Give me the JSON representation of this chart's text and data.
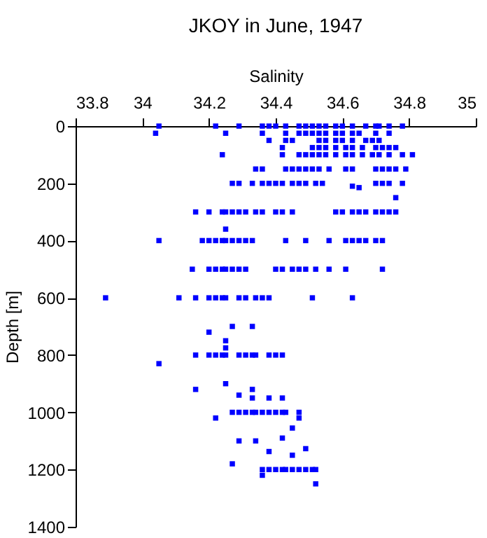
{
  "chart_data": {
    "type": "scatter",
    "title": "JKOY in June, 1947",
    "xlabel": "Salinity",
    "ylabel": "Depth [m]",
    "xlim": [
      33.8,
      35
    ],
    "xticks": [
      33.8,
      34,
      34.2,
      34.4,
      34.6,
      34.8,
      35
    ],
    "ylim": [
      1400,
      0
    ],
    "yticks": [
      0,
      200,
      400,
      600,
      800,
      1000,
      1200,
      1400
    ],
    "marker": "square",
    "series": [
      {
        "color": "#0000ff",
        "x": [
          34.05,
          34.22,
          34.29,
          34.36,
          34.38,
          34.4,
          34.43,
          34.47,
          34.49,
          34.51,
          34.53,
          34.55,
          34.58,
          34.6,
          34.63,
          34.67,
          34.7,
          34.71,
          34.74,
          34.78,
          34.04,
          34.25,
          34.36,
          34.43,
          34.47,
          34.49,
          34.51,
          34.53,
          34.55,
          34.58,
          34.6,
          34.63,
          34.65,
          34.7,
          34.74,
          34.38,
          34.43,
          34.45,
          34.53,
          34.55,
          34.58,
          34.6,
          34.63,
          34.67,
          34.69,
          34.71,
          34.42,
          34.51,
          34.53,
          34.55,
          34.58,
          34.61,
          34.63,
          34.66,
          34.7,
          34.72,
          34.74,
          34.76,
          34.24,
          34.42,
          34.47,
          34.49,
          34.51,
          34.53,
          34.55,
          34.58,
          34.61,
          34.63,
          34.66,
          34.69,
          34.71,
          34.74,
          34.78,
          34.81,
          34.34,
          34.36,
          34.43,
          34.45,
          34.47,
          34.49,
          34.51,
          34.53,
          34.56,
          34.61,
          34.63,
          34.7,
          34.72,
          34.74,
          34.76,
          34.79,
          34.27,
          34.29,
          34.33,
          34.36,
          34.38,
          34.4,
          34.42,
          34.45,
          34.47,
          34.49,
          34.52,
          34.54,
          34.63,
          34.65,
          34.7,
          34.72,
          34.74,
          34.78,
          34.76,
          34.16,
          34.2,
          34.24,
          34.25,
          34.27,
          34.29,
          34.31,
          34.34,
          34.36,
          34.4,
          34.42,
          34.45,
          34.58,
          34.6,
          34.63,
          34.65,
          34.67,
          34.7,
          34.72,
          34.74,
          34.76,
          34.25,
          34.05,
          34.18,
          34.2,
          34.22,
          34.24,
          34.25,
          34.27,
          34.29,
          34.31,
          34.33,
          34.43,
          34.49,
          34.56,
          34.61,
          34.63,
          34.65,
          34.67,
          34.7,
          34.72,
          34.15,
          34.2,
          34.22,
          34.24,
          34.25,
          34.27,
          34.29,
          34.31,
          34.4,
          34.42,
          34.45,
          34.47,
          34.49,
          34.52,
          34.56,
          34.61,
          34.72,
          33.89,
          34.11,
          34.16,
          34.2,
          34.22,
          34.24,
          34.25,
          34.29,
          34.31,
          34.34,
          34.36,
          34.38,
          34.51,
          34.63,
          34.27,
          34.33,
          34.2,
          34.25,
          34.25,
          34.16,
          34.2,
          34.22,
          34.24,
          34.25,
          34.29,
          34.31,
          34.33,
          34.34,
          34.38,
          34.4,
          34.42,
          34.05,
          34.16,
          34.25,
          34.33,
          34.29,
          34.33,
          34.38,
          34.42,
          34.27,
          34.29,
          34.31,
          34.33,
          34.34,
          34.36,
          34.38,
          34.4,
          34.42,
          34.43,
          34.47,
          34.22,
          34.47,
          34.45,
          34.42,
          34.29,
          34.34,
          34.27,
          34.38,
          34.45,
          34.49,
          34.36,
          34.38,
          34.4,
          34.42,
          34.43,
          34.45,
          34.47,
          34.49,
          34.51,
          34.52,
          34.36,
          34.52
        ],
        "values": [
          0,
          0,
          0,
          0,
          0,
          0,
          0,
          0,
          0,
          0,
          0,
          0,
          0,
          0,
          0,
          0,
          0,
          0,
          0,
          0,
          25,
          25,
          25,
          25,
          25,
          25,
          25,
          25,
          25,
          25,
          25,
          25,
          25,
          25,
          25,
          50,
          50,
          50,
          50,
          50,
          50,
          50,
          50,
          50,
          50,
          50,
          75,
          75,
          75,
          75,
          75,
          75,
          75,
          75,
          75,
          75,
          75,
          75,
          100,
          100,
          100,
          100,
          100,
          100,
          100,
          100,
          100,
          100,
          100,
          100,
          100,
          100,
          100,
          100,
          150,
          150,
          150,
          150,
          150,
          150,
          150,
          150,
          150,
          150,
          150,
          150,
          150,
          150,
          150,
          150,
          200,
          200,
          200,
          200,
          200,
          200,
          200,
          200,
          200,
          200,
          200,
          200,
          210,
          215,
          200,
          200,
          200,
          200,
          250,
          300,
          300,
          300,
          300,
          300,
          300,
          300,
          300,
          300,
          300,
          300,
          300,
          300,
          300,
          300,
          300,
          300,
          300,
          300,
          300,
          300,
          360,
          400,
          400,
          400,
          400,
          400,
          400,
          400,
          400,
          400,
          400,
          400,
          400,
          400,
          400,
          400,
          400,
          400,
          400,
          400,
          500,
          500,
          500,
          500,
          500,
          500,
          500,
          500,
          500,
          500,
          500,
          500,
          500,
          500,
          500,
          500,
          500,
          600,
          600,
          600,
          600,
          600,
          600,
          600,
          600,
          600,
          600,
          600,
          600,
          600,
          600,
          700,
          700,
          720,
          750,
          775,
          800,
          800,
          800,
          800,
          800,
          800,
          800,
          800,
          800,
          800,
          800,
          800,
          830,
          920,
          900,
          920,
          940,
          950,
          950,
          950,
          1000,
          1000,
          1000,
          1000,
          1000,
          1000,
          1000,
          1000,
          1000,
          1000,
          1000,
          1020,
          1020,
          1055,
          1090,
          1100,
          1100,
          1180,
          1137,
          1150,
          1127,
          1200,
          1200,
          1200,
          1200,
          1200,
          1200,
          1200,
          1200,
          1200,
          1200,
          1220,
          1250
        ]
      }
    ]
  }
}
